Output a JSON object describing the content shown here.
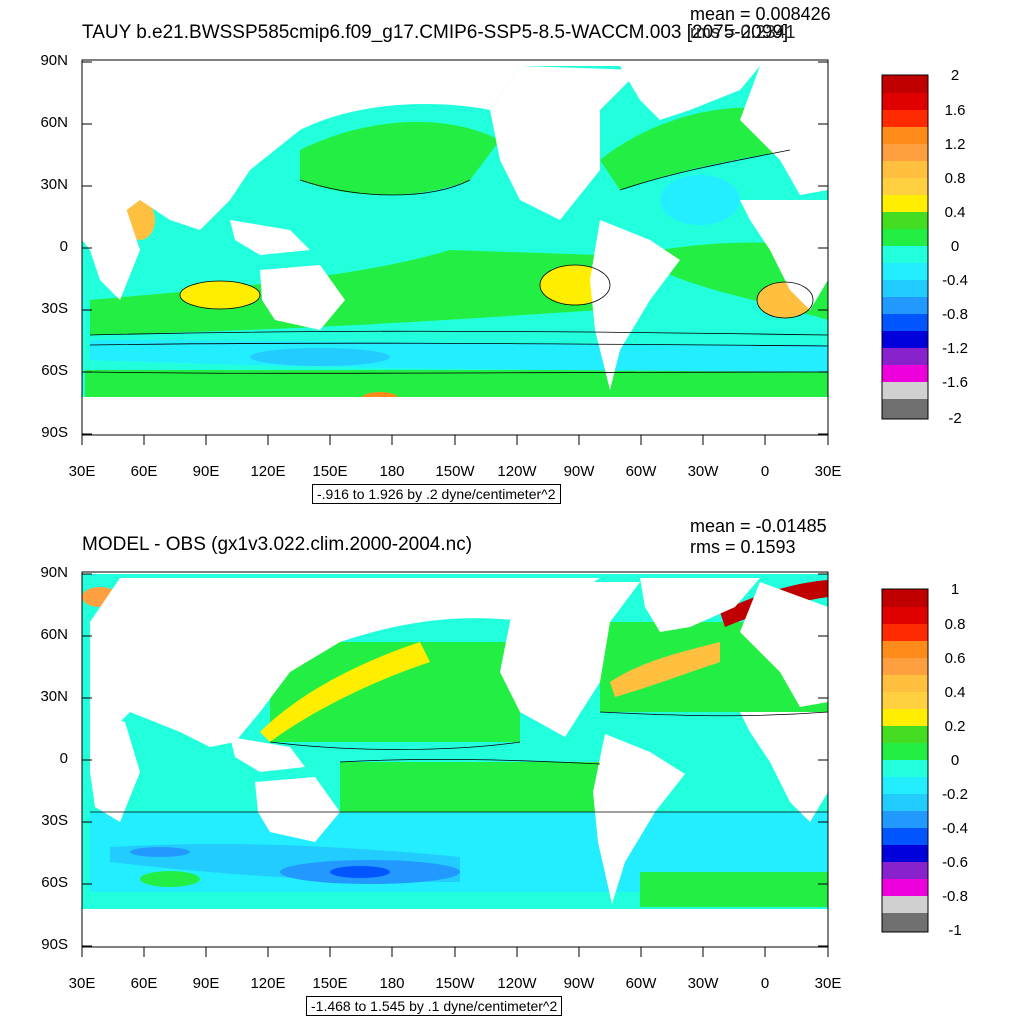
{
  "panels": [
    {
      "title": "TAUY b.e21.BWSSP585cmip6.f09_g17.CMIP6-SSP5-8.5-WACCM.003 [2075-2099]",
      "mean": "mean = 0.008426",
      "rms": "rms = 0.2341",
      "contour_info": "-.916 to 1.926 by .2 dyne/centimeter^2",
      "colorbar_labels": [
        "2",
        "1.6",
        "1.2",
        "0.8",
        "0.4",
        "0",
        "-0.4",
        "-0.8",
        "-1.2",
        "-1.6",
        "-2"
      ]
    },
    {
      "title": "MODEL - OBS (gx1v3.022.clim.2000-2004.nc)",
      "mean": "mean = -0.01485",
      "rms": "rms = 0.1593",
      "contour_info": "-1.468 to 1.545 by .1 dyne/centimeter^2",
      "colorbar_labels": [
        "1",
        "0.8",
        "0.6",
        "0.4",
        "0.2",
        "0",
        "-0.2",
        "-0.4",
        "-0.6",
        "-0.8",
        "-1"
      ]
    }
  ],
  "lat_labels": [
    "90N",
    "60N",
    "30N",
    "0",
    "30S",
    "60S",
    "90S"
  ],
  "lon_labels": [
    "30E",
    "60E",
    "90E",
    "120E",
    "150E",
    "180",
    "150W",
    "120W",
    "90W",
    "60W",
    "30W",
    "0",
    "30E"
  ],
  "colors": {
    "ocean_base": "#22ee44",
    "land": "#ffffff",
    "scale": [
      "#c00000",
      "#e00000",
      "#ff2a00",
      "#ff8c1a",
      "#ffa040",
      "#ffc040",
      "#ffee00",
      "#44dd22",
      "#22ee44",
      "#22ffdd",
      "#22eeff",
      "#22ccff",
      "#2299ff",
      "#0055ff",
      "#0000dd",
      "#8822cc",
      "#ee00dd",
      "#d0d0d0",
      "#707070"
    ]
  }
}
